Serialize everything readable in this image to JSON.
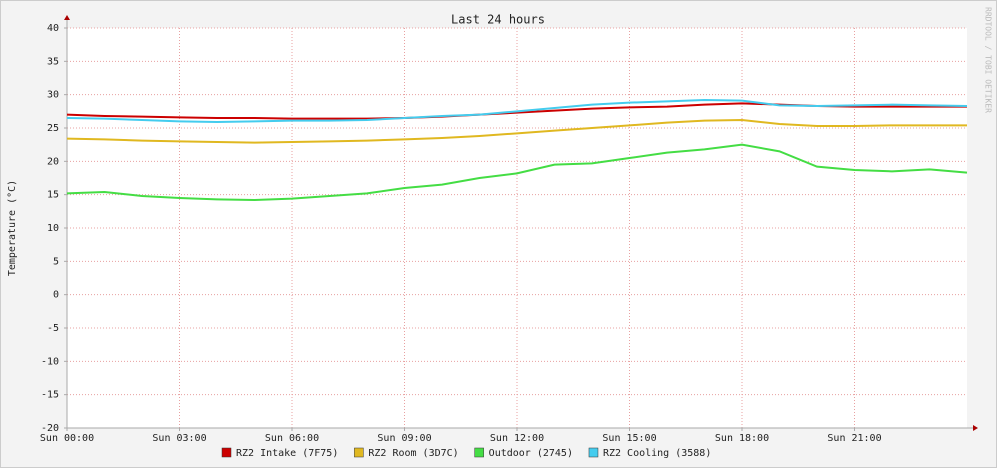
{
  "chart_data": {
    "type": "line",
    "title": "Last 24 hours",
    "y_label": "Temperature (°C)",
    "side_text": "RRDTOOL / TOBI OETIKER",
    "x": [
      0,
      1,
      2,
      3,
      4,
      5,
      6,
      7,
      8,
      9,
      10,
      11,
      12,
      13,
      14,
      15,
      16,
      17,
      18,
      19,
      20,
      21,
      22,
      23,
      24
    ],
    "series": [
      {
        "name": "RZ2 Intake (7F75)",
        "color": "#cc0000",
        "values": [
          27,
          26.8,
          26.7,
          26.6,
          26.5,
          26.5,
          26.4,
          26.4,
          26.4,
          26.5,
          26.7,
          27,
          27.3,
          27.6,
          27.9,
          28.1,
          28.2,
          28.5,
          28.7,
          28.5,
          28.3,
          28.2,
          28.2,
          28.2,
          28.2
        ]
      },
      {
        "name": "RZ2 Room (3D7C)",
        "color": "#e0b820",
        "values": [
          23.4,
          23.3,
          23.1,
          23,
          22.9,
          22.8,
          22.9,
          23,
          23.1,
          23.3,
          23.5,
          23.8,
          24.2,
          24.6,
          25,
          25.4,
          25.8,
          26.1,
          26.2,
          25.6,
          25.3,
          25.3,
          25.4,
          25.4,
          25.4
        ]
      },
      {
        "name": "Outdoor (2745)",
        "color": "#44dd44",
        "values": [
          15.2,
          15.4,
          14.8,
          14.5,
          14.3,
          14.2,
          14.4,
          14.8,
          15.2,
          16,
          16.5,
          17.5,
          18.2,
          19.5,
          19.7,
          20.5,
          21.3,
          21.8,
          22.5,
          21.5,
          19.2,
          18.7,
          18.5,
          18.8,
          18.3
        ]
      },
      {
        "name": "RZ2 Cooling (3588)",
        "color": "#44ccee",
        "values": [
          26.5,
          26.4,
          26.2,
          26,
          25.9,
          26,
          26.1,
          26.1,
          26.2,
          26.5,
          26.8,
          27,
          27.5,
          28,
          28.5,
          28.8,
          29,
          29.2,
          29.1,
          28.4,
          28.3,
          28.4,
          28.5,
          28.4,
          28.3
        ]
      }
    ],
    "xlim": [
      0,
      24
    ],
    "xticks": [
      {
        "value": 0,
        "label": "Sun 00:00"
      },
      {
        "value": 3,
        "label": "Sun 03:00"
      },
      {
        "value": 6,
        "label": "Sun 06:00"
      },
      {
        "value": 9,
        "label": "Sun 09:00"
      },
      {
        "value": 12,
        "label": "Sun 12:00"
      },
      {
        "value": 15,
        "label": "Sun 15:00"
      },
      {
        "value": 18,
        "label": "Sun 18:00"
      },
      {
        "value": 21,
        "label": "Sun 21:00"
      }
    ],
    "ylim": [
      -20,
      40
    ],
    "yticks": [
      -20,
      -15,
      -10,
      -5,
      0,
      5,
      10,
      15,
      20,
      25,
      30,
      35,
      40
    ],
    "grid": true
  }
}
